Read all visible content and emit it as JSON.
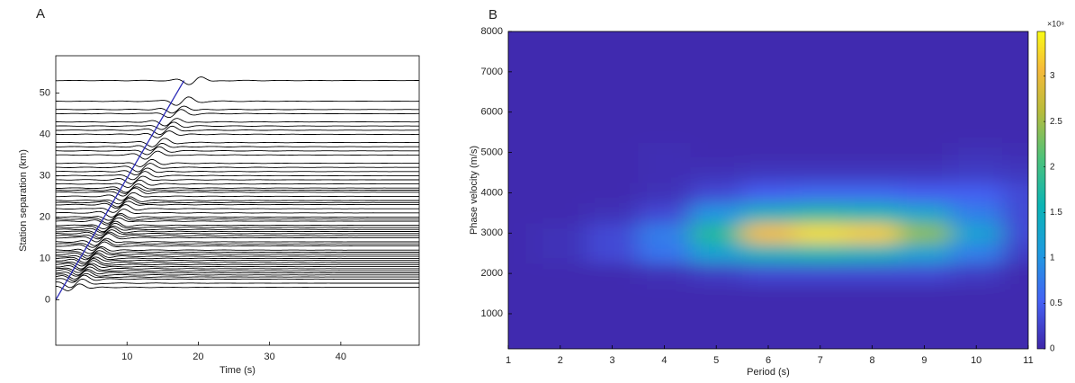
{
  "chart_data": [
    {
      "type": "traces",
      "label": "A",
      "xlabel": "Time (s)",
      "ylabel": "Station separation (km)",
      "xlim": [
        0,
        51
      ],
      "ylim": [
        -11,
        59
      ],
      "xticks": [
        10,
        20,
        30,
        40
      ],
      "yticks": [
        0,
        10,
        20,
        30,
        40,
        50
      ],
      "offsets": [
        3,
        4,
        5,
        5.5,
        6,
        6.5,
        7,
        7.5,
        8,
        8.5,
        9,
        9.5,
        10,
        10.5,
        11,
        11.5,
        12,
        13,
        13.5,
        14,
        15,
        15.5,
        16,
        16.5,
        17,
        17.5,
        18,
        19,
        19.5,
        20,
        21,
        22,
        23,
        23.5,
        24,
        25,
        26,
        26.5,
        27,
        28,
        29,
        30,
        31,
        32,
        33,
        35,
        36,
        37,
        38,
        40,
        41,
        42,
        43,
        45,
        46,
        48,
        53
      ],
      "trace_color": "#000000",
      "series": [
        {
          "x": [
            0,
            18
          ],
          "values": [
            0,
            53
          ],
          "color": "#2b2bb8"
        }
      ]
    },
    {
      "type": "heatmap",
      "label": "B",
      "xlabel": "Period (s)",
      "ylabel": "Phase velocity (m/s)",
      "xlim": [
        1,
        11
      ],
      "ylim": [
        130,
        8000
      ],
      "xticks": [
        1,
        2,
        3,
        4,
        5,
        6,
        7,
        8,
        9,
        10,
        11
      ],
      "yticks": [
        1000,
        2000,
        3000,
        4000,
        5000,
        6000,
        7000,
        8000
      ],
      "x": [
        1,
        2,
        3,
        4,
        5,
        6,
        7,
        8,
        9,
        10,
        11
      ],
      "y": [
        0,
        500,
        1000,
        1500,
        2000,
        2500,
        3000,
        3500,
        4000,
        4500,
        5000,
        5500,
        6000,
        6500,
        7000,
        7500,
        8000
      ],
      "z": [
        [
          0.05,
          0.05,
          0.05,
          0.05,
          0.05,
          0.05,
          0.05,
          0.05,
          0.05,
          0.05,
          0.05
        ],
        [
          0.05,
          0.05,
          0.05,
          0.05,
          0.05,
          0.05,
          0.05,
          0.05,
          0.05,
          0.05,
          0.05
        ],
        [
          0.05,
          0.05,
          0.05,
          0.05,
          0.05,
          0.05,
          0.05,
          0.05,
          0.05,
          0.05,
          0.05
        ],
        [
          0.05,
          0.05,
          0.05,
          0.05,
          0.05,
          0.05,
          0.05,
          0.05,
          0.05,
          0.05,
          0.05
        ],
        [
          0.05,
          0.05,
          0.05,
          0.1,
          0.2,
          0.3,
          0.3,
          0.3,
          0.3,
          0.2,
          0.05
        ],
        [
          0.05,
          0.1,
          0.3,
          0.7,
          1.2,
          1.5,
          1.6,
          1.5,
          1.2,
          0.8,
          0.2
        ],
        [
          0.05,
          0.1,
          0.3,
          0.8,
          1.8,
          3.1,
          3.3,
          3.2,
          2.4,
          1.2,
          0.3
        ],
        [
          0.05,
          0.05,
          0.1,
          0.3,
          1.0,
          1.5,
          1.7,
          1.6,
          1.3,
          0.8,
          0.3
        ],
        [
          0.05,
          0.05,
          0.05,
          0.1,
          0.3,
          0.5,
          0.6,
          0.6,
          0.5,
          0.5,
          0.3
        ],
        [
          0.05,
          0.05,
          0.05,
          0.08,
          0.1,
          0.15,
          0.15,
          0.15,
          0.15,
          0.2,
          0.15
        ],
        [
          0.05,
          0.05,
          0.05,
          0.08,
          0.05,
          0.05,
          0.05,
          0.05,
          0.05,
          0.1,
          0.08
        ],
        [
          0.05,
          0.05,
          0.05,
          0.05,
          0.05,
          0.05,
          0.05,
          0.05,
          0.05,
          0.05,
          0.05
        ],
        [
          0.05,
          0.05,
          0.05,
          0.05,
          0.05,
          0.05,
          0.05,
          0.05,
          0.05,
          0.05,
          0.05
        ],
        [
          0.05,
          0.05,
          0.05,
          0.05,
          0.05,
          0.05,
          0.05,
          0.05,
          0.05,
          0.05,
          0.05
        ],
        [
          0.05,
          0.05,
          0.05,
          0.05,
          0.05,
          0.05,
          0.05,
          0.05,
          0.05,
          0.05,
          0.05
        ],
        [
          0.05,
          0.05,
          0.05,
          0.05,
          0.05,
          0.05,
          0.05,
          0.05,
          0.05,
          0.05,
          0.05
        ],
        [
          0.05,
          0.05,
          0.05,
          0.05,
          0.05,
          0.05,
          0.05,
          0.05,
          0.05,
          0.05,
          0.05
        ]
      ],
      "clim": [
        0,
        3.49
      ],
      "cticks": [
        0,
        0.5,
        1,
        1.5,
        2,
        2.5,
        3
      ],
      "cbar_exponent": "×10⁸"
    }
  ]
}
